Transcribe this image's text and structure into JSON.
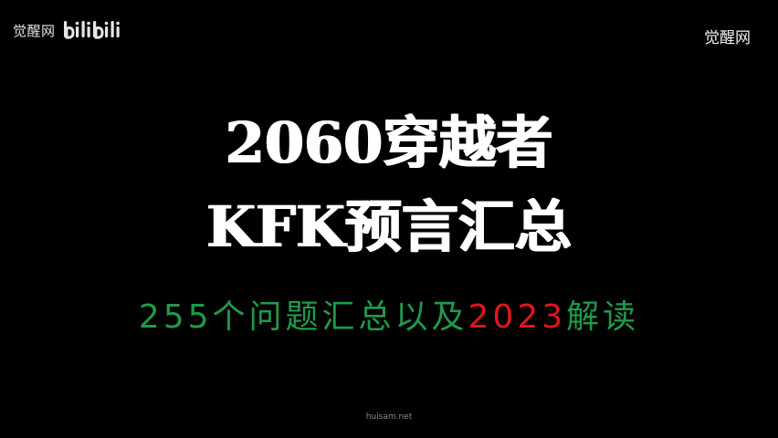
{
  "watermark": {
    "top_left_text": "觉醒网",
    "top_left_logo": "bilibili",
    "top_right_text": "觉醒网"
  },
  "title": {
    "line1": "2060穿越者",
    "line2": "KFK预言汇总"
  },
  "subtitle": {
    "part1": "255个问题汇总以及",
    "part2": "2023",
    "part3": "解读"
  },
  "footer": {
    "site": "huisam.net"
  },
  "colors": {
    "background": "#000000",
    "title": "#ffffff",
    "subtitle_green": "#1f9a4a",
    "subtitle_red": "#e0161c"
  }
}
